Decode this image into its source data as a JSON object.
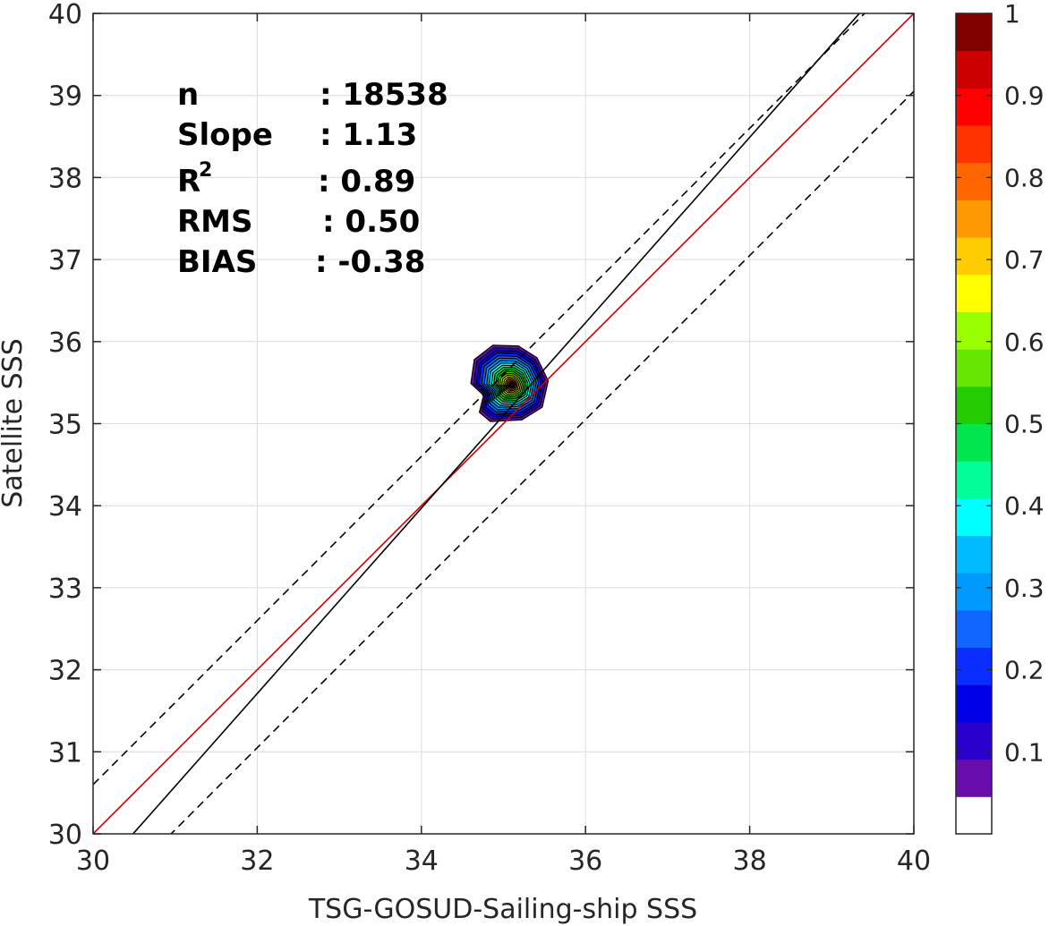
{
  "chart_data": {
    "type": "contour",
    "xlabel": "TSG-GOSUD-Sailing-ship SSS",
    "ylabel": "Satellite SSS",
    "xlim": [
      30,
      40
    ],
    "ylim": [
      30,
      40
    ],
    "xticks": [
      "30",
      "32",
      "34",
      "36",
      "38",
      "40"
    ],
    "yticks": [
      "30",
      "31",
      "32",
      "33",
      "34",
      "35",
      "36",
      "37",
      "38",
      "39",
      "40"
    ],
    "grid": true,
    "stats": [
      {
        "label": "n",
        "value": ": 18538"
      },
      {
        "label": "Slope",
        "value": ": 1.13"
      },
      {
        "label": "R",
        "sup": "2",
        "value": ": 0.89"
      },
      {
        "label": "RMS",
        "value": ": 0.50"
      },
      {
        "label": "BIAS",
        "value": ": -0.38"
      }
    ],
    "lines": [
      {
        "kind": "identity",
        "color": "#cc0000",
        "style": "solid",
        "slope": 1,
        "intercept": 0
      },
      {
        "kind": "fit",
        "color": "#000000",
        "style": "solid",
        "slope": 1.13,
        "intercept": -4.45
      },
      {
        "kind": "fit-plus-rms",
        "color": "#000000",
        "style": "dashed",
        "slope": 1,
        "intercept": 0.6
      },
      {
        "kind": "fit-minus-rms",
        "color": "#000000",
        "style": "dashed",
        "slope": 1,
        "intercept": -0.95
      }
    ],
    "density_peak": {
      "x": 35.1,
      "y": 35.47,
      "value": 1.0
    },
    "colorbar": {
      "range": [
        0,
        1
      ],
      "ticks": [
        "0.1",
        "0.2",
        "0.3",
        "0.4",
        "0.5",
        "0.6",
        "0.7",
        "0.8",
        "0.9",
        "1"
      ],
      "colors": [
        "#ffffff",
        "#6a0dad",
        "#2a00cc",
        "#0000e6",
        "#0a2eff",
        "#1166ff",
        "#0099ff",
        "#00bbff",
        "#00ffff",
        "#00ff99",
        "#00e64d",
        "#22cc00",
        "#66e600",
        "#99ff00",
        "#ffff00",
        "#ffcc00",
        "#ff9900",
        "#ff6600",
        "#ff3300",
        "#ff0000",
        "#cc0000",
        "#800000"
      ]
    }
  }
}
